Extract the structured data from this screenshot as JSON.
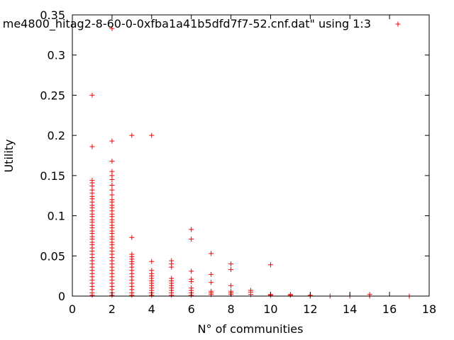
{
  "chart_data": {
    "type": "scatter",
    "title": "",
    "xlabel": "N° of communities",
    "ylabel": "Utility",
    "xlim": [
      0,
      18
    ],
    "ylim": [
      0,
      0.35
    ],
    "x_ticks": [
      0,
      2,
      4,
      6,
      8,
      10,
      12,
      14,
      16,
      18
    ],
    "x_tick_labels": [
      "0",
      "2",
      "4",
      "6",
      "8",
      "10",
      "12",
      "14",
      "16",
      "18"
    ],
    "y_ticks": [
      0,
      0.05,
      0.1,
      0.15,
      0.2,
      0.25,
      0.3,
      0.35
    ],
    "y_tick_labels": [
      "0",
      "0.05",
      "0.1",
      "0.15",
      "0.2",
      "0.25",
      "0.3",
      "0.35"
    ],
    "grid": false,
    "legend_position": "top-right",
    "marker": "plus",
    "series_color": "#ff0000",
    "series": [
      {
        "name": "me4800_hitag2-8-60-0-0xfba1a41b5dfd7f7-52.cnf.dat\" using 1:3",
        "points": [
          [
            1,
            0.25
          ],
          [
            1,
            0.186
          ],
          [
            1,
            0.144
          ],
          [
            1,
            0.141
          ],
          [
            1,
            0.137
          ],
          [
            1,
            0.132
          ],
          [
            1,
            0.128
          ],
          [
            1,
            0.124
          ],
          [
            1,
            0.121
          ],
          [
            1,
            0.117
          ],
          [
            1,
            0.113
          ],
          [
            1,
            0.11
          ],
          [
            1,
            0.106
          ],
          [
            1,
            0.102
          ],
          [
            1,
            0.099
          ],
          [
            1,
            0.095
          ],
          [
            1,
            0.092
          ],
          [
            1,
            0.088
          ],
          [
            1,
            0.085
          ],
          [
            1,
            0.081
          ],
          [
            1,
            0.078
          ],
          [
            1,
            0.074
          ],
          [
            1,
            0.071
          ],
          [
            1,
            0.067
          ],
          [
            1,
            0.064
          ],
          [
            1,
            0.06
          ],
          [
            1,
            0.056
          ],
          [
            1,
            0.052
          ],
          [
            1,
            0.048
          ],
          [
            1,
            0.044
          ],
          [
            1,
            0.04
          ],
          [
            1,
            0.036
          ],
          [
            1,
            0.032
          ],
          [
            1,
            0.028
          ],
          [
            1,
            0.024
          ],
          [
            1,
            0.02
          ],
          [
            1,
            0.016
          ],
          [
            1,
            0.012
          ],
          [
            1,
            0.008
          ],
          [
            1,
            0.004
          ],
          [
            1,
            0.001
          ],
          [
            2,
            0.333
          ],
          [
            2,
            0.193
          ],
          [
            2,
            0.168
          ],
          [
            2,
            0.155
          ],
          [
            2,
            0.15
          ],
          [
            2,
            0.145
          ],
          [
            2,
            0.138
          ],
          [
            2,
            0.132
          ],
          [
            2,
            0.126
          ],
          [
            2,
            0.12
          ],
          [
            2,
            0.117
          ],
          [
            2,
            0.113
          ],
          [
            2,
            0.11
          ],
          [
            2,
            0.106
          ],
          [
            2,
            0.102
          ],
          [
            2,
            0.099
          ],
          [
            2,
            0.095
          ],
          [
            2,
            0.092
          ],
          [
            2,
            0.088
          ],
          [
            2,
            0.085
          ],
          [
            2,
            0.081
          ],
          [
            2,
            0.078
          ],
          [
            2,
            0.074
          ],
          [
            2,
            0.071
          ],
          [
            2,
            0.067
          ],
          [
            2,
            0.064
          ],
          [
            2,
            0.06
          ],
          [
            2,
            0.056
          ],
          [
            2,
            0.052
          ],
          [
            2,
            0.048
          ],
          [
            2,
            0.044
          ],
          [
            2,
            0.04
          ],
          [
            2,
            0.036
          ],
          [
            2,
            0.032
          ],
          [
            2,
            0.028
          ],
          [
            2,
            0.024
          ],
          [
            2,
            0.02
          ],
          [
            2,
            0.016
          ],
          [
            2,
            0.012
          ],
          [
            2,
            0.008
          ],
          [
            2,
            0.004
          ],
          [
            2,
            0.001
          ],
          [
            3,
            0.2
          ],
          [
            3,
            0.073
          ],
          [
            3,
            0.052
          ],
          [
            3,
            0.049
          ],
          [
            3,
            0.046
          ],
          [
            3,
            0.043
          ],
          [
            3,
            0.04
          ],
          [
            3,
            0.036
          ],
          [
            3,
            0.032
          ],
          [
            3,
            0.028
          ],
          [
            3,
            0.024
          ],
          [
            3,
            0.02
          ],
          [
            3,
            0.016
          ],
          [
            3,
            0.012
          ],
          [
            3,
            0.008
          ],
          [
            3,
            0.004
          ],
          [
            3,
            0.001
          ],
          [
            4,
            0.2
          ],
          [
            4,
            0.043
          ],
          [
            4,
            0.032
          ],
          [
            4,
            0.028
          ],
          [
            4,
            0.025
          ],
          [
            4,
            0.022
          ],
          [
            4,
            0.019
          ],
          [
            4,
            0.016
          ],
          [
            4,
            0.013
          ],
          [
            4,
            0.01
          ],
          [
            4,
            0.007
          ],
          [
            4,
            0.004
          ],
          [
            4,
            0.001
          ],
          [
            5,
            0.044
          ],
          [
            5,
            0.04
          ],
          [
            5,
            0.036
          ],
          [
            5,
            0.022
          ],
          [
            5,
            0.019
          ],
          [
            5,
            0.016
          ],
          [
            5,
            0.013
          ],
          [
            5,
            0.01
          ],
          [
            5,
            0.007
          ],
          [
            5,
            0.004
          ],
          [
            5,
            0.001
          ],
          [
            6,
            0.083
          ],
          [
            6,
            0.071
          ],
          [
            6,
            0.031
          ],
          [
            6,
            0.021
          ],
          [
            6,
            0.018
          ],
          [
            6,
            0.01
          ],
          [
            6,
            0.007
          ],
          [
            6,
            0.004
          ],
          [
            6,
            0.001
          ],
          [
            7,
            0.053
          ],
          [
            7,
            0.027
          ],
          [
            7,
            0.017
          ],
          [
            7,
            0.006
          ],
          [
            7,
            0.004
          ],
          [
            7,
            0.002
          ],
          [
            8,
            0.04
          ],
          [
            8,
            0.033
          ],
          [
            8,
            0.013
          ],
          [
            8,
            0.006
          ],
          [
            8,
            0.004
          ],
          [
            8,
            0.002
          ],
          [
            9,
            0.007
          ],
          [
            9,
            0.005
          ],
          [
            9,
            0.002
          ],
          [
            10,
            0.039
          ],
          [
            10,
            0.002
          ],
          [
            10,
            0.001
          ],
          [
            11,
            0.002
          ],
          [
            11,
            0.001
          ],
          [
            12,
            0.001
          ],
          [
            12,
            0.0
          ],
          [
            13,
            0.0
          ],
          [
            14,
            0.0
          ],
          [
            15,
            0.002
          ],
          [
            15,
            0.0
          ],
          [
            17,
            0.0
          ]
        ]
      }
    ]
  }
}
